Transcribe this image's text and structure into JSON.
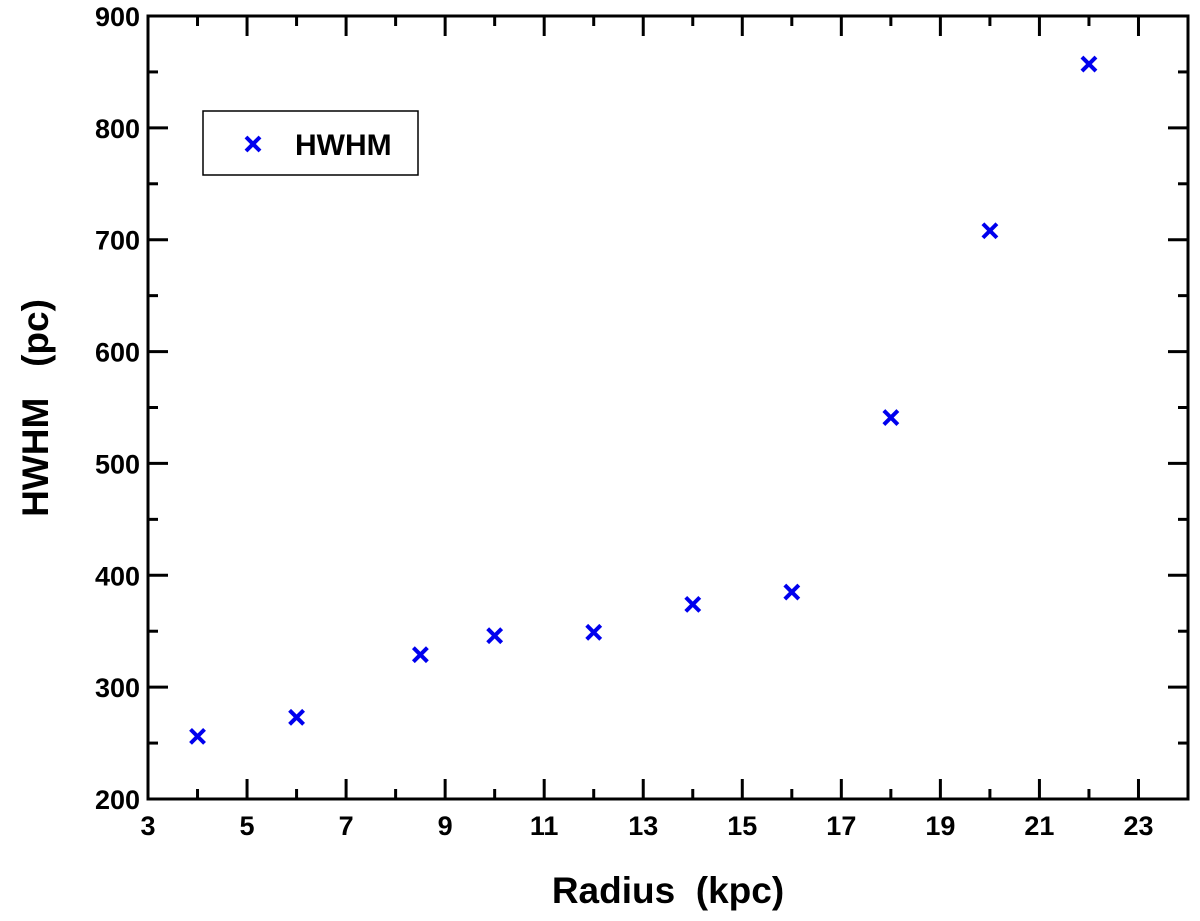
{
  "chart_data": {
    "type": "scatter",
    "xlabel": "Radius  (kpc)",
    "ylabel": "HWHM   (pc)",
    "xlim": [
      3,
      24
    ],
    "ylim": [
      200,
      900
    ],
    "x_ticks": [
      3,
      5,
      7,
      9,
      11,
      13,
      15,
      17,
      19,
      21,
      23
    ],
    "y_ticks": [
      200,
      300,
      400,
      500,
      600,
      700,
      800,
      900
    ],
    "legend_position": "top-left",
    "grid": false,
    "series": [
      {
        "name": "HWHM",
        "marker": "x",
        "color": "#0000ee",
        "x": [
          4,
          6,
          8.5,
          10,
          12,
          14,
          16,
          18,
          20,
          22
        ],
        "y": [
          256,
          273,
          329,
          346,
          349,
          374,
          385,
          541,
          708,
          857
        ]
      }
    ]
  }
}
